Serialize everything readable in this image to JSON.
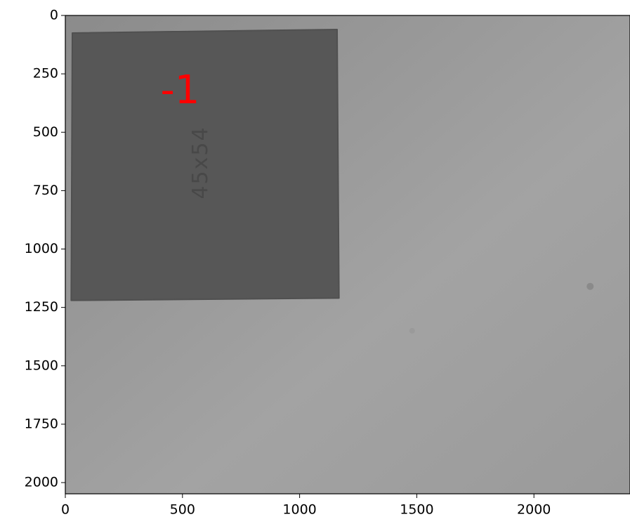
{
  "chart_data": {
    "type": "image",
    "annotation": "-1",
    "annotation_color": "#ff0000",
    "object_label": "45x54",
    "xlim": [
      0,
      2410
    ],
    "ylim": [
      2048,
      0
    ],
    "xticks": [
      0,
      500,
      1000,
      1500,
      2000
    ],
    "yticks": [
      0,
      250,
      500,
      750,
      1000,
      1250,
      1500,
      1750,
      2000
    ]
  }
}
